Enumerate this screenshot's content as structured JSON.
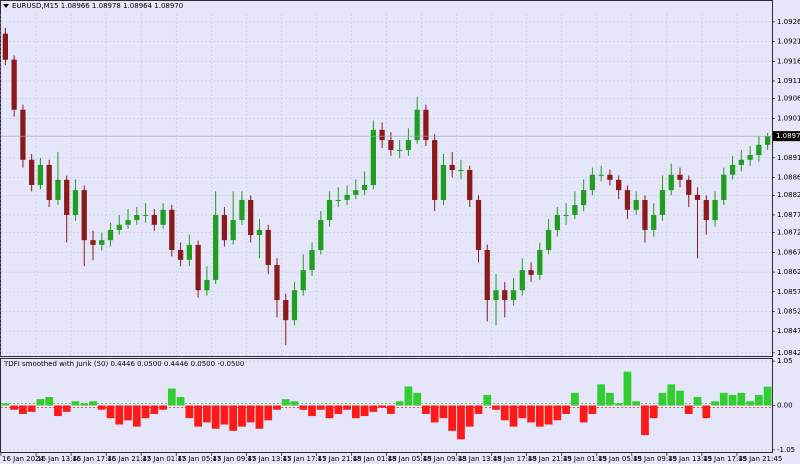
{
  "chart_data": [
    {
      "type": "candlestick",
      "title": "EURUSD,M15  1.08966 1.08978 1.08964 1.08970",
      "x_labels": [
        "16 Jan 2024",
        "16 Jan 13:45",
        "16 Jan 17:45",
        "16 Jan 21:45",
        "17 Jan 01:45",
        "17 Jan 05:45",
        "17 Jan 09:45",
        "17 Jan 13:45",
        "17 Jan 17:45",
        "17 Jan 21:45",
        "18 Jan 01:45",
        "18 Jan 05:45",
        "18 Jan 09:45",
        "18 Jan 13:45",
        "18 Jan 17:45",
        "18 Jan 21:45",
        "19 Jan 01:45",
        "19 Jan 05:45",
        "19 Jan 09:45",
        "19 Jan 13:45",
        "19 Jan 17:45",
        "19 Jan 21:45"
      ],
      "open": [
        1.0923,
        1.09164,
        1.09037,
        1.0891,
        1.08846,
        1.08897,
        1.08808,
        1.08859,
        1.0877,
        1.08833,
        1.08706,
        1.08694,
        1.08706,
        1.08732,
        1.08745,
        1.08757,
        1.0877,
        1.0877,
        1.08745,
        1.08783,
        1.08681,
        1.08656,
        1.08694,
        1.08579,
        1.08605,
        1.0877,
        1.08706,
        1.08757,
        1.08808,
        1.08719,
        1.08732,
        1.08643,
        1.08554,
        1.08503,
        1.08579,
        1.0863,
        1.08681,
        1.08757,
        1.08808,
        1.08808,
        1.08821,
        1.08833,
        1.08846,
        1.08986,
        1.0896,
        1.08935,
        1.08935,
        1.0896,
        1.09037,
        1.0896,
        1.08808,
        1.08897,
        1.08884,
        1.08884,
        1.08808,
        1.08681,
        1.08554,
        1.08579,
        1.08554,
        1.08579,
        1.0863,
        1.08618,
        1.08681,
        1.08732,
        1.0877,
        1.0877,
        1.08795,
        1.08833,
        1.08872,
        1.08872,
        1.08859,
        1.08833,
        1.08783,
        1.08808,
        1.08732,
        1.0877,
        1.08833,
        1.08872,
        1.08859,
        1.08821,
        1.08808,
        1.08757,
        1.08808,
        1.08872,
        1.08897,
        1.0891,
        1.08922,
        1.08948
      ],
      "high": [
        1.09245,
        1.09175,
        1.0905,
        1.08925,
        1.08915,
        1.0891,
        1.0893,
        1.0887,
        1.0886,
        1.08845,
        1.0873,
        1.08725,
        1.0875,
        1.0877,
        1.08785,
        1.0879,
        1.088,
        1.08785,
        1.088,
        1.08795,
        1.087,
        1.0872,
        1.08705,
        1.0864,
        1.0883,
        1.0879,
        1.0883,
        1.0883,
        1.0882,
        1.0876,
        1.08745,
        1.0866,
        1.0857,
        1.086,
        1.0867,
        1.087,
        1.0878,
        1.0883,
        1.0884,
        1.08845,
        1.0886,
        1.0888,
        1.0901,
        1.09005,
        1.0898,
        1.0896,
        1.0899,
        1.0907,
        1.0905,
        1.08975,
        1.08925,
        1.0893,
        1.0891,
        1.08895,
        1.0882,
        1.08695,
        1.0862,
        1.086,
        1.0861,
        1.0866,
        1.0865,
        1.087,
        1.0876,
        1.0879,
        1.088,
        1.0883,
        1.0886,
        1.0889,
        1.08895,
        1.08885,
        1.0887,
        1.08845,
        1.0883,
        1.0882,
        1.088,
        1.0887,
        1.089,
        1.0889,
        1.0887,
        1.0884,
        1.0882,
        1.0883,
        1.0889,
        1.0892,
        1.08935,
        1.08945,
        1.0897,
        1.08978
      ],
      "low": [
        1.0915,
        1.0902,
        1.0889,
        1.0883,
        1.08835,
        1.0879,
        1.08795,
        1.087,
        1.08755,
        1.0864,
        1.08655,
        1.0868,
        1.0869,
        1.0872,
        1.08735,
        1.08745,
        1.0875,
        1.0873,
        1.08735,
        1.08665,
        1.0864,
        1.0864,
        1.0856,
        1.08565,
        1.08595,
        1.0869,
        1.08695,
        1.08745,
        1.087,
        1.0866,
        1.0862,
        1.0851,
        1.0844,
        1.0849,
        1.08565,
        1.08615,
        1.0867,
        1.0874,
        1.0879,
        1.08795,
        1.0881,
        1.0882,
        1.08835,
        1.0894,
        1.0892,
        1.08915,
        1.0892,
        1.0895,
        1.08945,
        1.0878,
        1.08795,
        1.08865,
        1.0886,
        1.0879,
        1.0865,
        1.085,
        1.0849,
        1.0851,
        1.0854,
        1.08565,
        1.086,
        1.08605,
        1.0867,
        1.08715,
        1.08745,
        1.0876,
        1.0878,
        1.0882,
        1.08855,
        1.08845,
        1.0881,
        1.0876,
        1.0877,
        1.087,
        1.08715,
        1.08755,
        1.0882,
        1.0884,
        1.0879,
        1.0866,
        1.0872,
        1.0874,
        1.08795,
        1.0886,
        1.0888,
        1.08895,
        1.08905,
        1.08935
      ],
      "close": [
        1.09164,
        1.09037,
        1.0891,
        1.08846,
        1.08897,
        1.08808,
        1.08859,
        1.0877,
        1.08833,
        1.08706,
        1.08694,
        1.08706,
        1.08732,
        1.08745,
        1.08757,
        1.0877,
        1.0877,
        1.08745,
        1.08783,
        1.08681,
        1.08656,
        1.08694,
        1.08579,
        1.08605,
        1.0877,
        1.08706,
        1.08757,
        1.08808,
        1.08719,
        1.08732,
        1.08643,
        1.08554,
        1.08503,
        1.08579,
        1.0863,
        1.08681,
        1.08757,
        1.08808,
        1.08808,
        1.08821,
        1.08833,
        1.08846,
        1.08986,
        1.0896,
        1.08935,
        1.08935,
        1.0896,
        1.09037,
        1.0896,
        1.08808,
        1.08897,
        1.08884,
        1.08884,
        1.08808,
        1.08681,
        1.08554,
        1.08579,
        1.08554,
        1.08579,
        1.0863,
        1.08618,
        1.08681,
        1.08732,
        1.0877,
        1.0877,
        1.08795,
        1.08833,
        1.08872,
        1.08872,
        1.08859,
        1.08833,
        1.08783,
        1.08808,
        1.08732,
        1.0877,
        1.08833,
        1.08872,
        1.08859,
        1.08821,
        1.08808,
        1.08757,
        1.08808,
        1.08872,
        1.08897,
        1.0891,
        1.08922,
        1.08948,
        1.0897
      ],
      "up_color": "#1f9e1f",
      "down_color": "#8b1a1a",
      "ylim": [
        1.08412,
        1.0928
      ],
      "yticks": [
        {
          "value": 1.0926,
          "label": "1.09260"
        },
        {
          "value": 1.0921,
          "label": "1.09210"
        },
        {
          "value": 1.0916,
          "label": "1.09160"
        },
        {
          "value": 1.0911,
          "label": "1.09110"
        },
        {
          "value": 1.09065,
          "label": "1.09065"
        },
        {
          "value": 1.09015,
          "label": "1.09015"
        },
        {
          "value": 1.08915,
          "label": "1.08915"
        },
        {
          "value": 1.08865,
          "label": "1.08865"
        },
        {
          "value": 1.0882,
          "label": "1.08820"
        },
        {
          "value": 1.0877,
          "label": "1.08770"
        },
        {
          "value": 1.08725,
          "label": "1.08725"
        },
        {
          "value": 1.08675,
          "label": "1.08675"
        },
        {
          "value": 1.08625,
          "label": "1.08625"
        },
        {
          "value": 1.08575,
          "label": "1.08575"
        },
        {
          "value": 1.08525,
          "label": "1.08525"
        },
        {
          "value": 1.08475,
          "label": "1.08475"
        },
        {
          "value": 1.0842,
          "label": "1.08420"
        }
      ],
      "current_price": {
        "value": 1.0897,
        "label": "1.08970"
      },
      "grid": true
    },
    {
      "type": "histogram",
      "title": "TDFI smoothed with Jurik (50) 0.4446 0.0500 0.4446 0.0500 -0.0500",
      "values": [
        0.05,
        -0.1,
        -0.2,
        -0.15,
        0.15,
        0.2,
        -0.25,
        -0.15,
        0.1,
        0.05,
        0.1,
        -0.1,
        -0.3,
        -0.45,
        -0.35,
        -0.5,
        -0.3,
        -0.2,
        -0.1,
        0.4,
        0.2,
        -0.3,
        -0.5,
        -0.4,
        -0.55,
        -0.45,
        -0.6,
        -0.5,
        -0.4,
        -0.55,
        -0.35,
        -0.1,
        0.15,
        0.1,
        -0.1,
        -0.25,
        -0.1,
        -0.3,
        -0.2,
        -0.1,
        -0.3,
        -0.25,
        -0.15,
        -0.05,
        -0.2,
        0.1,
        0.45,
        0.3,
        -0.2,
        -0.4,
        -0.3,
        -0.6,
        -0.8,
        -0.5,
        -0.2,
        0.25,
        -0.1,
        -0.35,
        -0.5,
        -0.3,
        -0.4,
        -0.5,
        -0.45,
        -0.35,
        -0.2,
        0.3,
        -0.4,
        -0.2,
        0.5,
        0.3,
        0.05,
        0.8,
        0.1,
        -0.7,
        -0.3,
        0.3,
        0.5,
        0.35,
        -0.2,
        0.2,
        -0.3,
        0.1,
        0.3,
        0.25,
        0.3,
        0.1,
        0.25,
        0.4446
      ],
      "positive_color": "#32cd32",
      "negative_color": "#ff1a1a",
      "levels": [
        0.05,
        -0.05
      ],
      "ylim": [
        -1.1,
        1.1
      ],
      "yticks": [
        1.05,
        {
          "value": 0,
          "label": "0.00"
        },
        -1.05
      ]
    }
  ]
}
